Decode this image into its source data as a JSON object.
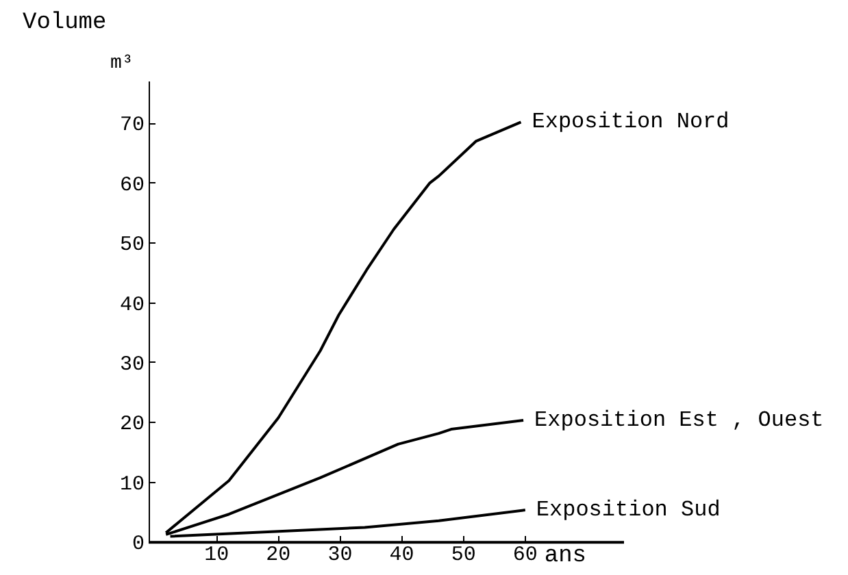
{
  "chart_data": {
    "type": "line",
    "title": "Volume",
    "ylabel": "m³",
    "xlabel": "ans",
    "xlim": [
      -1,
      76
    ],
    "ylim": [
      0,
      77
    ],
    "xticks": [
      10,
      20,
      30,
      40,
      50,
      60
    ],
    "yticks": [
      0,
      10,
      20,
      30,
      40,
      50,
      60,
      70
    ],
    "grid": false,
    "legend": false,
    "marker": "none",
    "line_style": "solid",
    "series": [
      {
        "name": "Exposition Nord",
        "color": "#000000",
        "x": [
          1.8,
          12,
          20,
          26.8,
          29.8,
          34.3,
          38.7,
          44.5,
          46,
          52,
          59.3
        ],
        "values": [
          1.6,
          10.3,
          20.8,
          32,
          38,
          45.5,
          52.3,
          60,
          61.2,
          67,
          70.2
        ]
      },
      {
        "name": "Exposition Est , Ouest",
        "color": "#000000",
        "x": [
          1.8,
          12,
          26.8,
          39.4,
          46,
          48,
          59.7
        ],
        "values": [
          1.3,
          4.7,
          10.8,
          16.4,
          18.2,
          18.9,
          20.4
        ]
      },
      {
        "name": "Exposition Sud",
        "color": "#000000",
        "x": [
          2.5,
          19.5,
          34,
          46,
          60
        ],
        "values": [
          1,
          1.8,
          2.5,
          3.6,
          5.4
        ]
      }
    ]
  }
}
